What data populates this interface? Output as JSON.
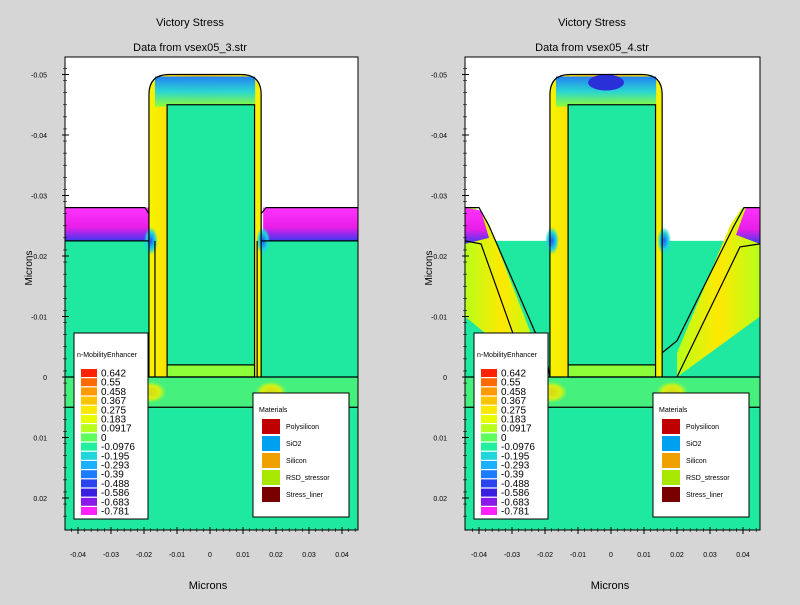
{
  "chart_data": [
    {
      "type": "heatmap",
      "title": "Victory Stress",
      "subtitle": "Data from vsex05_3.str",
      "xlabel": "Microns",
      "ylabel": "Microns",
      "xlim": [
        -0.042,
        0.045
      ],
      "ylim": [
        -0.055,
        0.025
      ],
      "y_inverted": true,
      "x_ticks": [
        "-0.04",
        "-0.03",
        "-0.02",
        "-0.01",
        "0",
        "0.01",
        "0.02",
        "0.03",
        "0.04"
      ],
      "y_ticks": [
        "-0.05",
        "-0.04",
        "-0.03",
        "-0.02",
        "-0.01",
        "0",
        "0.01",
        "0.02"
      ],
      "quantity": "n-MobilityEnhancer",
      "legend_values": [
        "0.642",
        "0.55",
        "0.458",
        "0.367",
        "0.275",
        "0.183",
        "0.0917",
        "0",
        "-0.0976",
        "-0.195",
        "-0.293",
        "-0.39",
        "-0.488",
        "-0.586",
        "-0.683",
        "-0.781"
      ],
      "materials": [
        "Polysilicon",
        "SiO2",
        "Silicon",
        "RSD_stressor",
        "Stress_liner"
      ],
      "structure": "flat RSD stressor"
    },
    {
      "type": "heatmap",
      "title": "Victory Stress",
      "subtitle": "Data from vsex05_4.str",
      "xlabel": "Microns",
      "ylabel": "Microns",
      "xlim": [
        -0.042,
        0.045
      ],
      "ylim": [
        -0.055,
        0.025
      ],
      "y_inverted": true,
      "x_ticks": [
        "-0.04",
        "-0.03",
        "-0.02",
        "-0.01",
        "0",
        "0.01",
        "0.02",
        "0.03",
        "0.04"
      ],
      "y_ticks": [
        "-0.05",
        "-0.04",
        "-0.03",
        "-0.02",
        "-0.01",
        "0",
        "0.01",
        "0.02"
      ],
      "quantity": "n-MobilityEnhancer",
      "legend_values": [
        "0.642",
        "0.55",
        "0.458",
        "0.367",
        "0.275",
        "0.183",
        "0.0917",
        "0",
        "-0.0976",
        "-0.195",
        "-0.293",
        "-0.39",
        "-0.488",
        "-0.586",
        "-0.683",
        "-0.781"
      ],
      "materials": [
        "Polysilicon",
        "SiO2",
        "Silicon",
        "RSD_stressor",
        "Stress_liner"
      ],
      "structure": "faceted RSD stressor"
    }
  ],
  "colors": {
    "page_bg": "#d6d6d6",
    "plot_bg": "#ffffff",
    "base_field": "#1fe8a0",
    "legend_scale": [
      "#ff2200",
      "#ff6a00",
      "#ff9a00",
      "#ffc400",
      "#ffe800",
      "#e8ff00",
      "#b6ff1a",
      "#5cff5c",
      "#21f0a0",
      "#1ed6dc",
      "#1ab0ff",
      "#1a7cff",
      "#2a44f0",
      "#3a1ee0",
      "#8a18e8",
      "#ff22ff"
    ],
    "materials": [
      "#c00000",
      "#00a0f0",
      "#f0a000",
      "#a8e800",
      "#7a0000"
    ]
  }
}
